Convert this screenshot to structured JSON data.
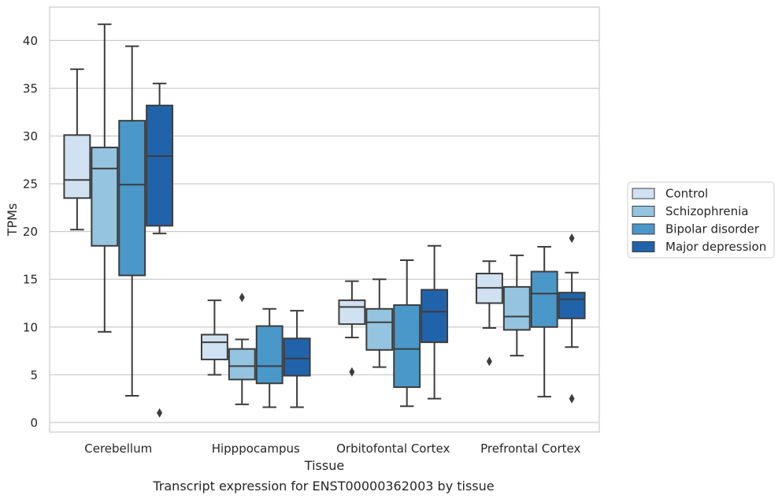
{
  "chart_data": {
    "type": "box",
    "xlabel": "Tissue",
    "ylabel": "TPMs",
    "caption": "Transcript expression for ENST00000362003 by tissue",
    "ylim": [
      -1.0,
      43.5
    ],
    "yticks": [
      0,
      5,
      10,
      15,
      20,
      25,
      30,
      35,
      40
    ],
    "grid": "horizontal",
    "legend_position": "right, outside plot",
    "categories": [
      "Cerebellum",
      "Hipppocampus",
      "Orbitofontal Cortex",
      "Prefrontal Cortex"
    ],
    "series": [
      {
        "name": "Control",
        "color": "#d0e1f2",
        "boxes": [
          {
            "whislo": 20.2,
            "q1": 23.5,
            "med": 25.4,
            "q3": 30.1,
            "whishi": 37.0,
            "fliers": []
          },
          {
            "whislo": 5.0,
            "q1": 6.6,
            "med": 8.4,
            "q3": 9.2,
            "whishi": 12.8,
            "fliers": []
          },
          {
            "whislo": 8.9,
            "q1": 10.3,
            "med": 12.1,
            "q3": 12.8,
            "whishi": 14.8,
            "fliers": [
              5.3
            ]
          },
          {
            "whislo": 9.9,
            "q1": 12.5,
            "med": 14.1,
            "q3": 15.6,
            "whishi": 16.9,
            "fliers": [
              6.4
            ]
          }
        ]
      },
      {
        "name": "Schizophrenia",
        "color": "#94c4df",
        "boxes": [
          {
            "whislo": 9.5,
            "q1": 18.5,
            "med": 26.6,
            "q3": 28.8,
            "whishi": 41.7,
            "fliers": []
          },
          {
            "whislo": 1.9,
            "q1": 4.5,
            "med": 5.9,
            "q3": 7.7,
            "whishi": 8.7,
            "fliers": [
              13.1
            ]
          },
          {
            "whislo": 5.8,
            "q1": 7.6,
            "med": 10.5,
            "q3": 11.9,
            "whishi": 15.0,
            "fliers": []
          },
          {
            "whislo": 7.0,
            "q1": 9.7,
            "med": 11.1,
            "q3": 14.2,
            "whishi": 17.5,
            "fliers": []
          }
        ]
      },
      {
        "name": "Bipolar disorder",
        "color": "#4a98c9",
        "boxes": [
          {
            "whislo": 2.8,
            "q1": 15.4,
            "med": 24.9,
            "q3": 31.6,
            "whishi": 39.4,
            "fliers": []
          },
          {
            "whislo": 1.6,
            "q1": 4.1,
            "med": 5.9,
            "q3": 10.1,
            "whishi": 11.9,
            "fliers": []
          },
          {
            "whislo": 1.7,
            "q1": 3.7,
            "med": 7.7,
            "q3": 12.3,
            "whishi": 17.0,
            "fliers": []
          },
          {
            "whislo": 2.7,
            "q1": 10.0,
            "med": 13.5,
            "q3": 15.8,
            "whishi": 18.4,
            "fliers": []
          }
        ]
      },
      {
        "name": "Major depression",
        "color": "#2163aa",
        "boxes": [
          {
            "whislo": 19.8,
            "q1": 20.6,
            "med": 27.9,
            "q3": 33.2,
            "whishi": 35.5,
            "fliers": [
              1.0
            ]
          },
          {
            "whislo": 1.6,
            "q1": 4.9,
            "med": 6.7,
            "q3": 8.8,
            "whishi": 11.7,
            "fliers": []
          },
          {
            "whislo": 2.5,
            "q1": 8.4,
            "med": 11.6,
            "q3": 13.9,
            "whishi": 18.5,
            "fliers": []
          },
          {
            "whislo": 7.9,
            "q1": 10.9,
            "med": 12.9,
            "q3": 13.6,
            "whishi": 15.7,
            "fliers": [
              19.3,
              2.5
            ]
          }
        ]
      }
    ]
  }
}
